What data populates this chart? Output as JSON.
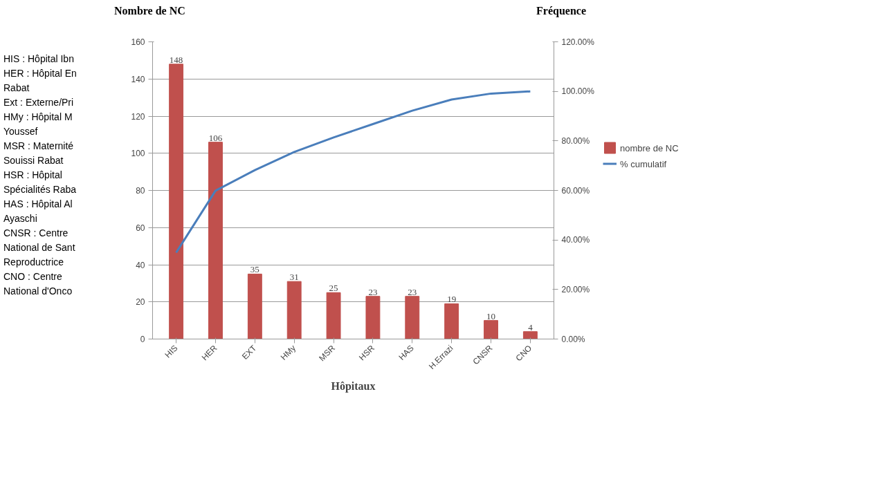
{
  "chart_data": {
    "type": "bar",
    "ylabel": "Nombre de NC",
    "y2label": "Fréquence",
    "xlabel": "Hôpitaux",
    "categories": [
      "HIS",
      "HER",
      "EXT",
      "HMy",
      "MSR",
      "HSR",
      "HAS",
      "H.Errazi",
      "CNSR",
      "CNO"
    ],
    "series": [
      {
        "name": "nombre de NC",
        "color": "#c0504d",
        "values": [
          148,
          106,
          35,
          31,
          25,
          23,
          23,
          19,
          10,
          4
        ],
        "value_labels": [
          "148",
          "106",
          "35",
          "31",
          "25",
          "23",
          "23",
          "19",
          "10",
          "4"
        ]
      },
      {
        "name": "% cumulatif",
        "type": "line",
        "axis": "y2",
        "color": "#4a7ebb",
        "values": [
          34.9,
          59.9,
          68.2,
          75.5,
          81.4,
          86.8,
          92.2,
          96.7,
          99.1,
          100
        ]
      }
    ],
    "ylim": [
      0,
      160
    ],
    "yticks": [
      0,
      20,
      40,
      60,
      80,
      100,
      120,
      140,
      160
    ],
    "y2lim": [
      0,
      120
    ],
    "y2ticks": [
      {
        "value": 0,
        "label": "0.00%"
      },
      {
        "value": 20,
        "label": "20.00%"
      },
      {
        "value": 40,
        "label": "40.00%"
      },
      {
        "value": 60,
        "label": "60.00%"
      },
      {
        "value": 80,
        "label": "80.00%"
      },
      {
        "value": 100,
        "label": "100.00%"
      },
      {
        "value": 120,
        "label": "120.00%"
      }
    ],
    "grid": "y",
    "legend": "right",
    "marker": "none",
    "line_style": "solid",
    "annotations": [
      "HIS : Hôpital Ibn",
      "HER : Hôpital En",
      "Rabat",
      "Ext : Externe/Pri",
      "HMy : Hôpital M",
      "Youssef",
      "MSR : Maternité",
      "Souissi Rabat",
      "HSR : Hôpital",
      "Spécialités Raba",
      "HAS : Hôpital Al",
      "Ayaschi",
      "CNSR : Centre",
      "National de Sant",
      "Reproductrice",
      "CNO : Centre",
      "National d'Onco"
    ]
  }
}
